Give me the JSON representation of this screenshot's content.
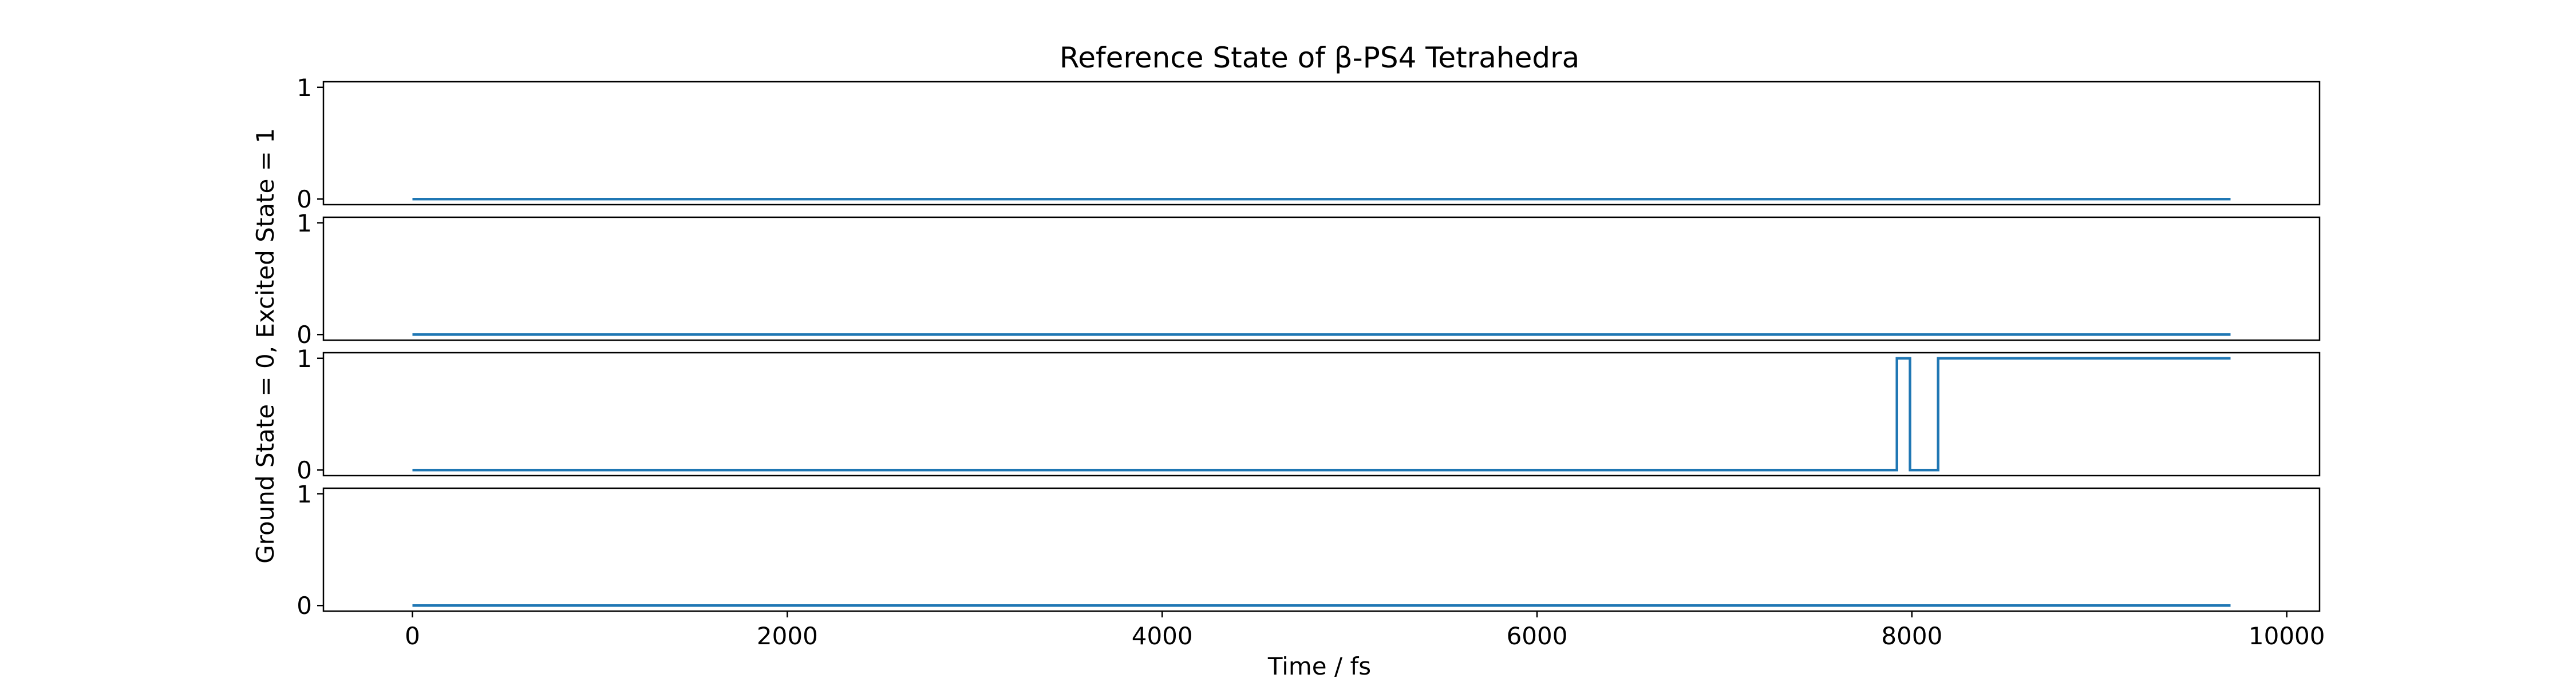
{
  "chart_data": {
    "type": "line",
    "title": "Reference State of β-PS4 Tetrahedra",
    "xlabel": "Time / fs",
    "ylabel": "Ground State = 0, Excited State = 1",
    "xlim": [
      -475,
      10175
    ],
    "ylim": [
      -0.05,
      1.05
    ],
    "xticks": [
      0,
      2000,
      4000,
      6000,
      8000,
      10000
    ],
    "yticks": [
      0,
      1
    ],
    "grid": false,
    "line_color": "#1f77b4",
    "panels": [
      {
        "name": "panel-1",
        "x": [
          0,
          9700
        ],
        "y": [
          0,
          0
        ]
      },
      {
        "name": "panel-2",
        "x": [
          0,
          9700
        ],
        "y": [
          0,
          0
        ]
      },
      {
        "name": "panel-3",
        "x": [
          0,
          7920,
          7920,
          7990,
          7990,
          8140,
          8140,
          9700
        ],
        "y": [
          0,
          0,
          1,
          1,
          0,
          0,
          1,
          1
        ]
      },
      {
        "name": "panel-4",
        "x": [
          0,
          9700
        ],
        "y": [
          0,
          0
        ]
      }
    ]
  }
}
